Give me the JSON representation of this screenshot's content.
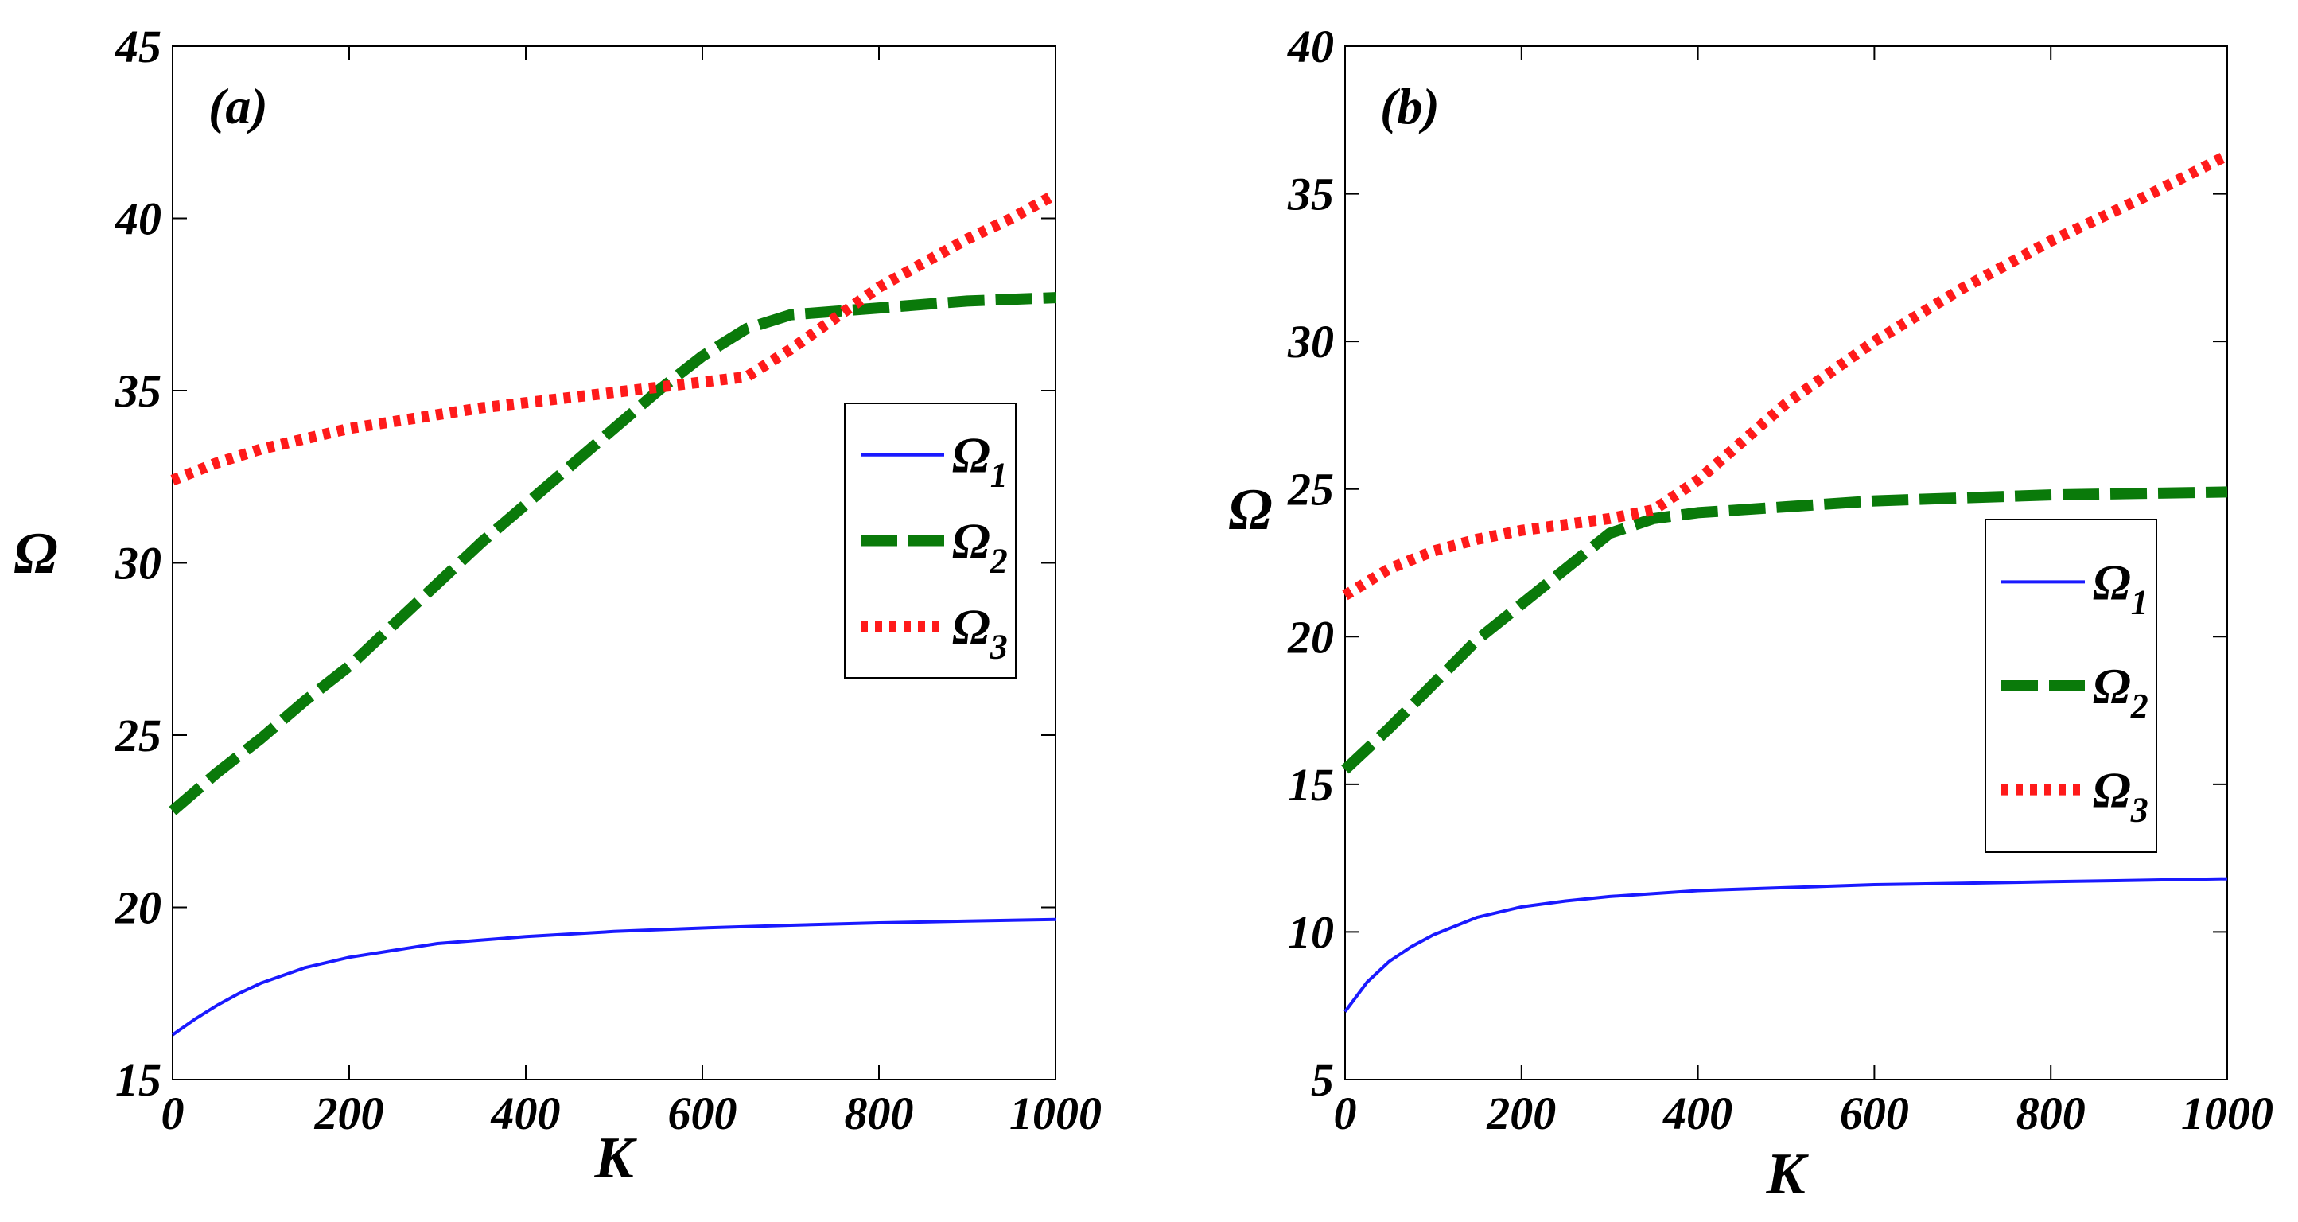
{
  "chart_data": [
    {
      "type": "line",
      "panel_label": "(a)",
      "xlabel": "K",
      "ylabel": "Ω",
      "xlim": [
        0,
        1000
      ],
      "ylim": [
        15,
        45
      ],
      "xticks": [
        0,
        200,
        400,
        600,
        800,
        1000
      ],
      "yticks": [
        15,
        20,
        25,
        30,
        35,
        40,
        45
      ],
      "xtick_labels": [
        "0",
        "200",
        "400",
        "600",
        "800",
        "1000"
      ],
      "ytick_labels": [
        "15",
        "20",
        "25",
        "30",
        "35",
        "40",
        "45"
      ],
      "legend_position": "right-upper-middle",
      "grid": false,
      "series": [
        {
          "name": "Ω1",
          "label_main": "Ω",
          "label_sub": "1",
          "style": "solid",
          "color": "#1a1aff",
          "x": [
            0,
            25,
            50,
            75,
            100,
            150,
            200,
            250,
            300,
            350,
            400,
            500,
            600,
            700,
            800,
            900,
            1000
          ],
          "y": [
            16.3,
            16.75,
            17.15,
            17.5,
            17.8,
            18.25,
            18.55,
            18.75,
            18.95,
            19.05,
            19.15,
            19.3,
            19.4,
            19.48,
            19.55,
            19.6,
            19.65
          ]
        },
        {
          "name": "Ω2",
          "label_main": "Ω",
          "label_sub": "2",
          "style": "dashed",
          "color": "#0a7a0a",
          "x": [
            0,
            50,
            100,
            150,
            200,
            250,
            300,
            350,
            400,
            450,
            500,
            550,
            600,
            650,
            700,
            800,
            900,
            1000
          ],
          "y": [
            22.8,
            23.9,
            24.9,
            26.0,
            27.0,
            28.2,
            29.4,
            30.6,
            31.7,
            32.8,
            33.9,
            35.0,
            36.0,
            36.8,
            37.2,
            37.4,
            37.6,
            37.7
          ]
        },
        {
          "name": "Ω3",
          "label_main": "Ω",
          "label_sub": "3",
          "style": "dotted",
          "color": "#ff1a1a",
          "x": [
            0,
            50,
            100,
            150,
            200,
            250,
            300,
            350,
            400,
            450,
            500,
            550,
            600,
            650,
            700,
            750,
            800,
            850,
            900,
            950,
            1000
          ],
          "y": [
            32.4,
            32.9,
            33.3,
            33.6,
            33.9,
            34.1,
            34.3,
            34.5,
            34.65,
            34.8,
            34.95,
            35.1,
            35.25,
            35.4,
            36.2,
            37.1,
            38.0,
            38.7,
            39.4,
            40.0,
            40.7
          ]
        }
      ]
    },
    {
      "type": "line",
      "panel_label": "(b)",
      "xlabel": "K",
      "ylabel": "Ω",
      "xlim": [
        0,
        1000
      ],
      "ylim": [
        5,
        40
      ],
      "xticks": [
        0,
        200,
        400,
        600,
        800,
        1000
      ],
      "yticks": [
        5,
        10,
        15,
        20,
        25,
        30,
        35,
        40
      ],
      "xtick_labels": [
        "0",
        "200",
        "400",
        "600",
        "800",
        "1000"
      ],
      "ytick_labels": [
        "5",
        "10",
        "15",
        "20",
        "25",
        "30",
        "35",
        "40"
      ],
      "legend_position": "right-middle",
      "grid": false,
      "series": [
        {
          "name": "Ω1",
          "label_main": "Ω",
          "label_sub": "1",
          "style": "solid",
          "color": "#1a1aff",
          "x": [
            0,
            25,
            50,
            75,
            100,
            150,
            200,
            250,
            300,
            400,
            500,
            600,
            700,
            800,
            900,
            1000
          ],
          "y": [
            7.3,
            8.3,
            9.0,
            9.5,
            9.9,
            10.5,
            10.85,
            11.05,
            11.2,
            11.4,
            11.5,
            11.6,
            11.65,
            11.7,
            11.75,
            11.8
          ]
        },
        {
          "name": "Ω2",
          "label_main": "Ω",
          "label_sub": "2",
          "style": "dashed",
          "color": "#0a7a0a",
          "x": [
            0,
            50,
            100,
            150,
            200,
            250,
            300,
            350,
            400,
            500,
            600,
            700,
            800,
            900,
            1000
          ],
          "y": [
            15.5,
            16.9,
            18.4,
            19.9,
            21.1,
            22.3,
            23.5,
            24.0,
            24.2,
            24.4,
            24.6,
            24.7,
            24.8,
            24.85,
            24.9
          ]
        },
        {
          "name": "Ω3",
          "label_main": "Ω",
          "label_sub": "3",
          "style": "dotted",
          "color": "#ff1a1a",
          "x": [
            0,
            50,
            100,
            150,
            200,
            250,
            300,
            350,
            400,
            450,
            500,
            600,
            700,
            800,
            900,
            1000
          ],
          "y": [
            21.4,
            22.3,
            22.9,
            23.3,
            23.6,
            23.8,
            24.0,
            24.3,
            25.3,
            26.6,
            27.9,
            30.0,
            31.8,
            33.4,
            34.8,
            36.3
          ]
        }
      ]
    }
  ]
}
